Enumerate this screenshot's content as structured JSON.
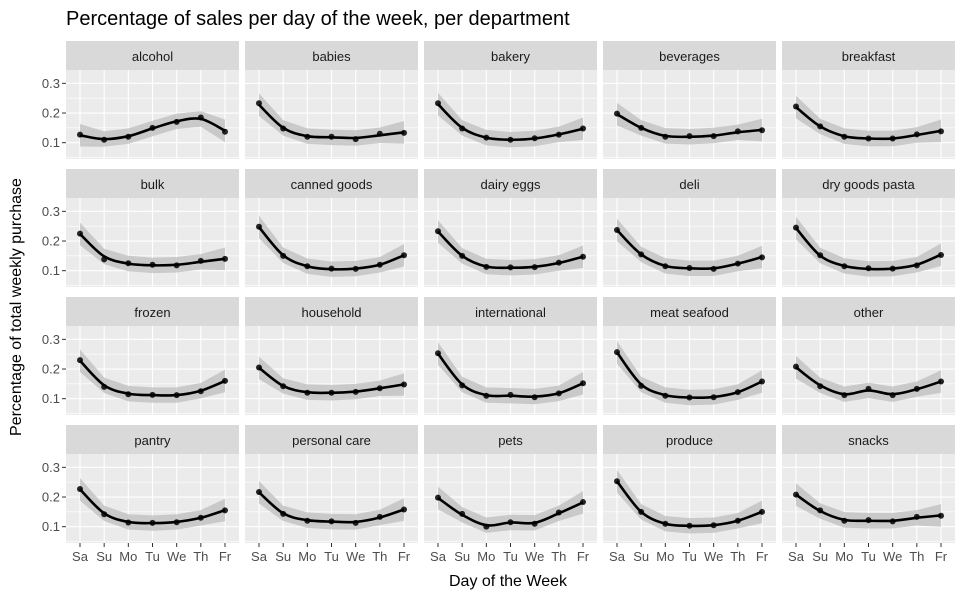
{
  "chart_data": {
    "type": "line",
    "title": "Percentage of sales per day of the week, per department",
    "xlabel": "Day of the Week",
    "ylabel": "Percentage of total weekly purchase",
    "x": [
      "Sa",
      "Su",
      "Mo",
      "Tu",
      "We",
      "Th",
      "Fr"
    ],
    "yticks": [
      0.1,
      0.2,
      0.3
    ],
    "ylim": [
      0.045,
      0.345
    ],
    "grid": true,
    "facet_cols": 5,
    "smoother": "loess with grey confidence band",
    "colors": {
      "panel": "#ebebeb",
      "strip": "#d9d9d9",
      "grid": "#ffffff",
      "line": "#000000",
      "ribbon": "#bebebe"
    },
    "series": [
      {
        "name": "alcohol",
        "values": [
          0.127,
          0.11,
          0.12,
          0.15,
          0.17,
          0.185,
          0.137
        ],
        "smooth": [
          0.125,
          0.112,
          0.122,
          0.148,
          0.172,
          0.18,
          0.14
        ]
      },
      {
        "name": "babies",
        "values": [
          0.233,
          0.148,
          0.12,
          0.12,
          0.112,
          0.13,
          0.133
        ],
        "smooth": [
          0.228,
          0.15,
          0.122,
          0.118,
          0.116,
          0.125,
          0.135
        ]
      },
      {
        "name": "bakery",
        "values": [
          0.233,
          0.148,
          0.117,
          0.11,
          0.115,
          0.127,
          0.148
        ],
        "smooth": [
          0.23,
          0.15,
          0.117,
          0.11,
          0.114,
          0.128,
          0.147
        ]
      },
      {
        "name": "beverages",
        "values": [
          0.198,
          0.15,
          0.12,
          0.122,
          0.122,
          0.138,
          0.142
        ],
        "smooth": [
          0.196,
          0.15,
          0.123,
          0.12,
          0.124,
          0.135,
          0.143
        ]
      },
      {
        "name": "breakfast",
        "values": [
          0.222,
          0.155,
          0.12,
          0.114,
          0.114,
          0.128,
          0.138
        ],
        "smooth": [
          0.22,
          0.155,
          0.122,
          0.114,
          0.114,
          0.126,
          0.14
        ]
      },
      {
        "name": "bulk",
        "values": [
          0.225,
          0.138,
          0.125,
          0.12,
          0.118,
          0.133,
          0.14
        ],
        "smooth": [
          0.224,
          0.148,
          0.124,
          0.118,
          0.12,
          0.13,
          0.14
        ]
      },
      {
        "name": "canned goods",
        "values": [
          0.248,
          0.15,
          0.115,
          0.107,
          0.106,
          0.12,
          0.152
        ],
        "smooth": [
          0.247,
          0.152,
          0.115,
          0.105,
          0.107,
          0.12,
          0.152
        ]
      },
      {
        "name": "dairy eggs",
        "values": [
          0.233,
          0.15,
          0.113,
          0.111,
          0.112,
          0.127,
          0.147
        ],
        "smooth": [
          0.232,
          0.15,
          0.114,
          0.11,
          0.113,
          0.126,
          0.147
        ]
      },
      {
        "name": "deli",
        "values": [
          0.237,
          0.155,
          0.115,
          0.109,
          0.106,
          0.124,
          0.145
        ],
        "smooth": [
          0.237,
          0.155,
          0.116,
          0.108,
          0.108,
          0.124,
          0.146
        ]
      },
      {
        "name": "dry goods pasta",
        "values": [
          0.245,
          0.152,
          0.115,
          0.108,
          0.107,
          0.118,
          0.153
        ],
        "smooth": [
          0.244,
          0.151,
          0.116,
          0.106,
          0.107,
          0.12,
          0.154
        ]
      },
      {
        "name": "frozen",
        "values": [
          0.23,
          0.14,
          0.115,
          0.113,
          0.112,
          0.125,
          0.16
        ],
        "smooth": [
          0.228,
          0.145,
          0.117,
          0.112,
          0.112,
          0.127,
          0.16
        ]
      },
      {
        "name": "household",
        "values": [
          0.205,
          0.142,
          0.12,
          0.12,
          0.123,
          0.135,
          0.148
        ],
        "smooth": [
          0.204,
          0.143,
          0.122,
          0.12,
          0.124,
          0.135,
          0.148
        ]
      },
      {
        "name": "international",
        "values": [
          0.253,
          0.145,
          0.11,
          0.113,
          0.105,
          0.118,
          0.152
        ],
        "smooth": [
          0.252,
          0.148,
          0.112,
          0.11,
          0.107,
          0.118,
          0.152
        ]
      },
      {
        "name": "meat seafood",
        "values": [
          0.257,
          0.143,
          0.11,
          0.104,
          0.105,
          0.122,
          0.158
        ],
        "smooth": [
          0.256,
          0.148,
          0.112,
          0.104,
          0.106,
          0.122,
          0.158
        ]
      },
      {
        "name": "other",
        "values": [
          0.208,
          0.142,
          0.112,
          0.133,
          0.112,
          0.133,
          0.158
        ],
        "smooth": [
          0.206,
          0.145,
          0.115,
          0.128,
          0.115,
          0.132,
          0.158
        ]
      },
      {
        "name": "pantry",
        "values": [
          0.227,
          0.142,
          0.114,
          0.113,
          0.115,
          0.13,
          0.155
        ],
        "smooth": [
          0.226,
          0.145,
          0.116,
          0.112,
          0.116,
          0.13,
          0.156
        ]
      },
      {
        "name": "personal care",
        "values": [
          0.217,
          0.143,
          0.12,
          0.118,
          0.113,
          0.133,
          0.158
        ],
        "smooth": [
          0.216,
          0.145,
          0.122,
          0.117,
          0.116,
          0.131,
          0.158
        ]
      },
      {
        "name": "pets",
        "values": [
          0.198,
          0.143,
          0.1,
          0.115,
          0.11,
          0.148,
          0.183
        ],
        "smooth": [
          0.197,
          0.14,
          0.105,
          0.114,
          0.113,
          0.145,
          0.182
        ]
      },
      {
        "name": "produce",
        "values": [
          0.253,
          0.15,
          0.11,
          0.103,
          0.105,
          0.12,
          0.15
        ],
        "smooth": [
          0.253,
          0.15,
          0.11,
          0.103,
          0.105,
          0.12,
          0.15
        ]
      },
      {
        "name": "snacks",
        "values": [
          0.208,
          0.155,
          0.12,
          0.122,
          0.118,
          0.133,
          0.137
        ],
        "smooth": [
          0.208,
          0.153,
          0.123,
          0.12,
          0.12,
          0.13,
          0.138
        ]
      }
    ]
  }
}
